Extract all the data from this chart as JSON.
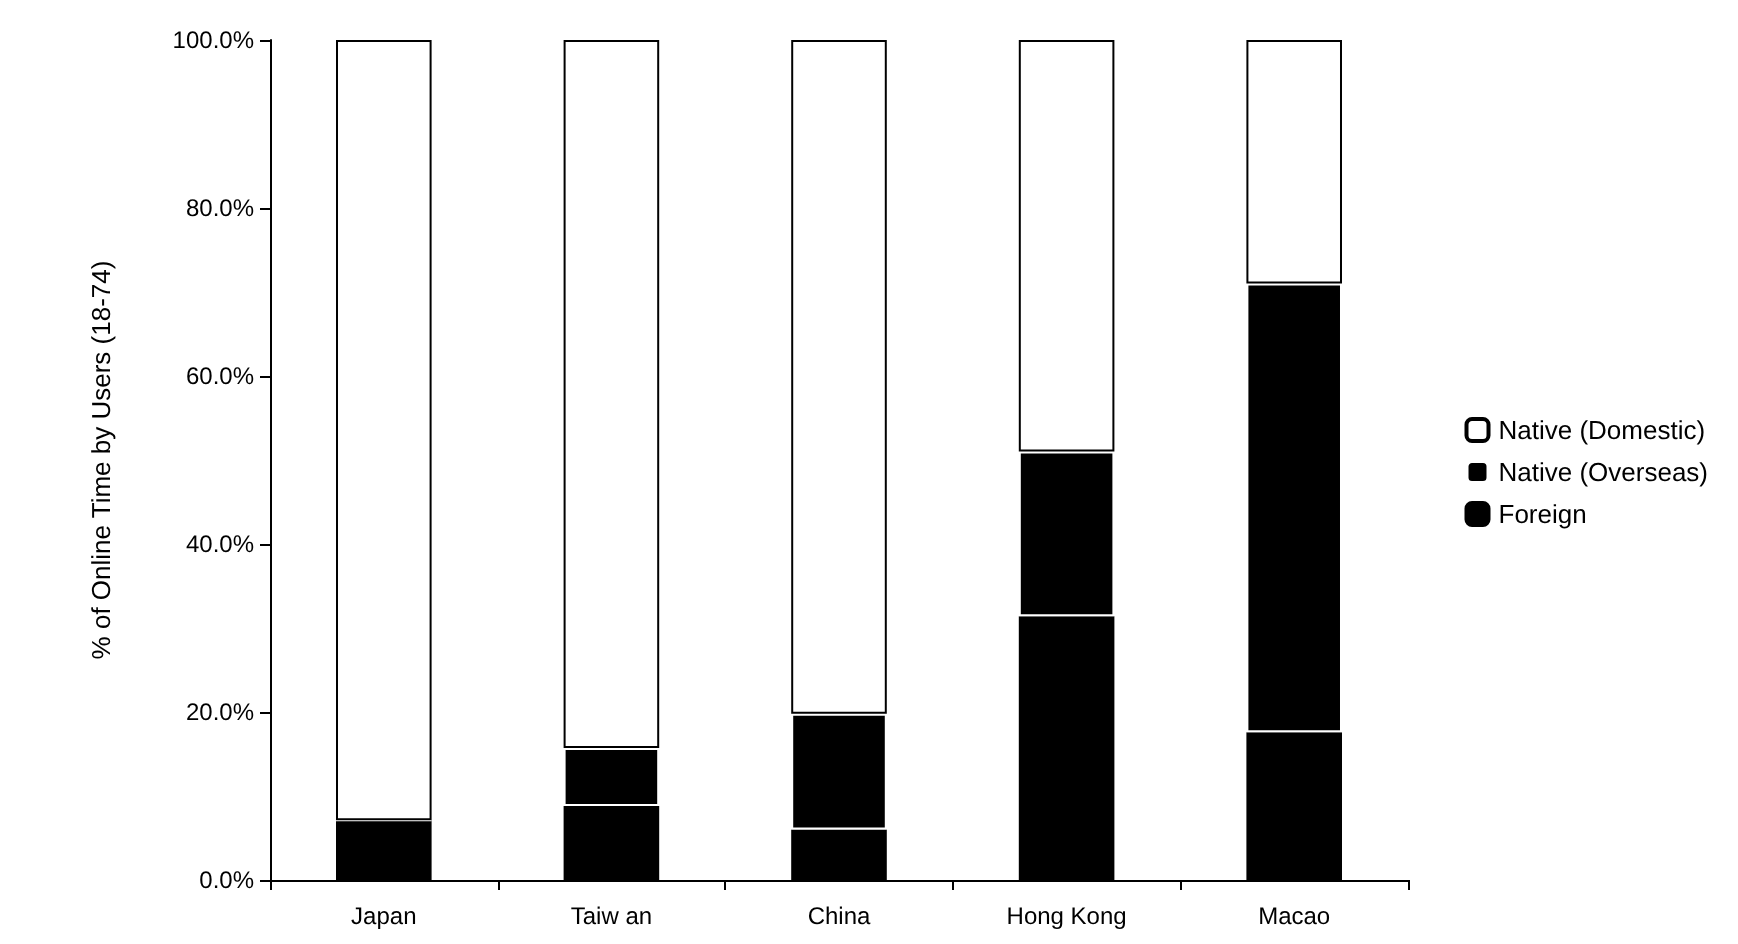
{
  "chart_data": {
    "type": "bar",
    "stacked": true,
    "ylabel": "% of Online Time by Users (18-74)",
    "categories": [
      "Japan",
      "Taiw an",
      "China",
      "Hong Kong",
      "Macao"
    ],
    "series": [
      {
        "name": "Foreign",
        "color": "#000000",
        "values": [
          7.1,
          8.8,
          6.0,
          31.4,
          17.6
        ]
      },
      {
        "name": "Native (Overseas)",
        "color": "#000000",
        "values": [
          0,
          6.9,
          13.8,
          19.6,
          53.4
        ]
      },
      {
        "name": "Native (Domestic)",
        "color": "#ffffff",
        "values": [
          92.9,
          84.3,
          80.2,
          49.0,
          29.0
        ]
      }
    ],
    "ylim": [
      0,
      100
    ],
    "yticks": [
      {
        "value": 0,
        "label": "0.0%"
      },
      {
        "value": 20,
        "label": "20.0%"
      },
      {
        "value": 40,
        "label": "40.0%"
      },
      {
        "value": 60,
        "label": "60.0%"
      },
      {
        "value": 80,
        "label": "80.0%"
      },
      {
        "value": 100,
        "label": "100.0%"
      }
    ],
    "grid": false,
    "legend": "right"
  }
}
